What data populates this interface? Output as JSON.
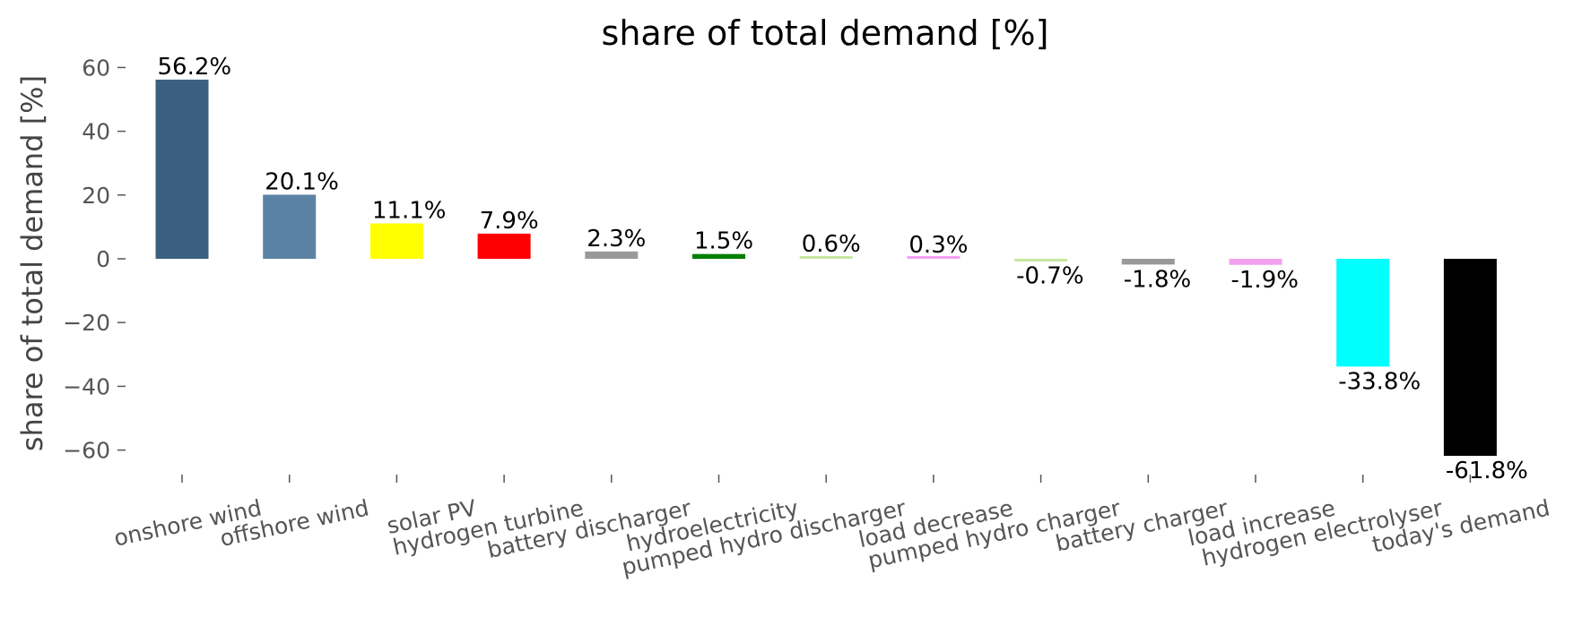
{
  "chart_data": {
    "type": "bar",
    "title": "share of total demand [%]",
    "ylabel": "share of total demand [%]",
    "xlabel": "",
    "ylim": [
      -67,
      66
    ],
    "yticks": [
      60,
      40,
      20,
      0,
      -20,
      -40,
      -60
    ],
    "yticklabels": [
      "60",
      "40",
      "20",
      "0",
      "−20",
      "−40",
      "−60"
    ],
    "grid": false,
    "legend": "none",
    "categories": [
      "onshore wind",
      "offshore wind",
      "solar PV",
      "hydrogen turbine",
      "battery discharger",
      "hydroelectricity",
      "pumped hydro discharger",
      "load decrease",
      "pumped hydro charger",
      "battery charger",
      "load increase",
      "hydrogen electrolyser",
      "today's demand"
    ],
    "values": [
      56.2,
      20.1,
      11.1,
      7.9,
      2.3,
      1.5,
      0.6,
      0.3,
      -0.7,
      -1.8,
      -1.9,
      -33.8,
      -61.8
    ],
    "labels": [
      "56.2%",
      "20.1%",
      "11.1%",
      "7.9%",
      "2.3%",
      "1.5%",
      "0.6%",
      "0.3%",
      "-0.7%",
      "-1.8%",
      "-1.9%",
      "-33.8%",
      "-61.8%"
    ],
    "colors": [
      "#3b5f80",
      "#5b82a4",
      "#ffff00",
      "#ff0000",
      "#999999",
      "#008000",
      "#c8e6a0",
      "#f4a0f0",
      "#c8e6a0",
      "#999999",
      "#f4a0f0",
      "#00ffff",
      "#000000"
    ]
  }
}
